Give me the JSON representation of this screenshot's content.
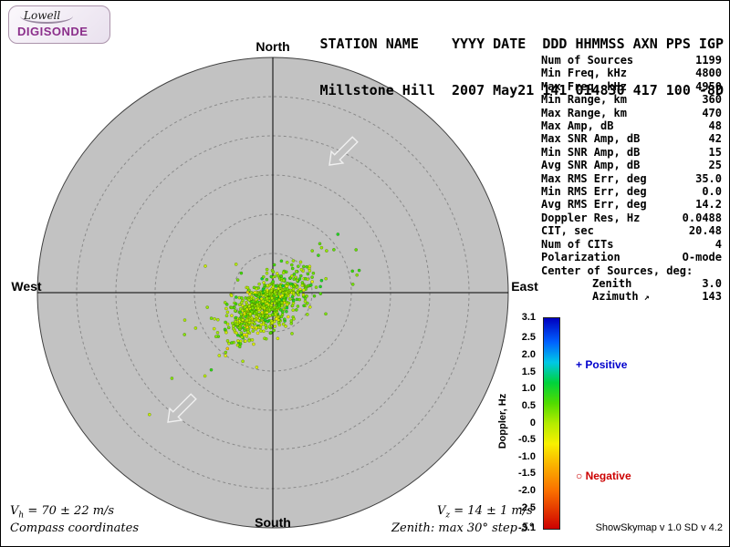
{
  "header": {
    "columns_line": "STATION NAME    YYYY DATE  DDD HHMMSS AXN PPS IGP",
    "values_line": "Millstone Hill  2007 May21 141 014830 417 100 -8D"
  },
  "logo": {
    "line1": "Lowell",
    "line2": "DIGISONDE"
  },
  "compass": {
    "north": "North",
    "south": "South",
    "west": "West",
    "east": "East"
  },
  "params": {
    "rows": [
      {
        "label": "Num of Sources",
        "value": "1199"
      },
      {
        "label": "Min Freq, kHz",
        "value": "4800"
      },
      {
        "label": "Max Freq, kHz",
        "value": "4950"
      },
      {
        "label": "Min Range, km",
        "value": "360"
      },
      {
        "label": "Max Range, km",
        "value": "470"
      },
      {
        "label": "Max Amp, dB",
        "value": "48"
      },
      {
        "label": "Max SNR Amp, dB",
        "value": "42"
      },
      {
        "label": "Min SNR Amp, dB",
        "value": "15"
      },
      {
        "label": "Avg SNR Amp, dB",
        "value": "25"
      },
      {
        "label": "Max RMS Err, deg",
        "value": "35.0"
      },
      {
        "label": "Min RMS Err, deg",
        "value": "0.0"
      },
      {
        "label": "Avg RMS Err, deg",
        "value": "14.2"
      },
      {
        "label": "Doppler Res, Hz",
        "value": "0.0488"
      },
      {
        "label": "CIT, sec",
        "value": "20.48"
      },
      {
        "label": "Num of CITs",
        "value": "4"
      },
      {
        "label": "Polarization",
        "value": "O-mode"
      }
    ],
    "center_header": "Center of Sources, deg:",
    "center_rows": [
      {
        "label": "Zenith",
        "value": "3.0",
        "icon": ""
      },
      {
        "label": "Azimuth",
        "value": "143",
        "icon": "↗"
      }
    ]
  },
  "legend": {
    "positive": {
      "symbol": "+",
      "label": "Positive",
      "color": "#0000cc"
    },
    "negative": {
      "symbol": "○",
      "label": "Negative",
      "color": "#cc0000"
    }
  },
  "footer": {
    "vh_prefix": "V",
    "vh_sub": "h",
    "vh_rest": " = 70 ± 22 m/s",
    "coordinates": "Compass coordinates",
    "vz_prefix": "V",
    "vz_sub": "z",
    "vz_rest": " = 14 ± 1 m/s",
    "zenith_note": "Zenith: max 30°  step 5°",
    "credit": "ShowSkymap v 1.0  SD v 4.2"
  },
  "chart_data": {
    "type": "scatter",
    "projection": "polar-compass-skymap",
    "zenith_max_deg": 30,
    "zenith_step_deg": 5,
    "num_sources_reported": 1199,
    "points_drawn": 780,
    "cluster": {
      "center_zenith_deg": 1.7,
      "center_azimuth_deg": 205,
      "sigma_major_deg": 3.1,
      "sigma_minor_deg": 1.4,
      "major_axis_azimuth_deg": 53
    },
    "outlier_fraction": 0.07,
    "outlier_sigma_deg": 6.5,
    "doppler_mean_hz": 0.2,
    "doppler_sigma_hz": 0.4,
    "reported_center": {
      "zenith_deg": 3.0,
      "azimuth_deg": 143
    },
    "colorbar": {
      "label": "Doppler, Hz",
      "min": -3.1,
      "max": 3.1,
      "ticks": [
        {
          "value": 3.1,
          "label": "3.1"
        },
        {
          "value": 2.5,
          "label": "2.5"
        },
        {
          "value": 2.0,
          "label": "2.0"
        },
        {
          "value": 1.5,
          "label": "1.5"
        },
        {
          "value": 1.0,
          "label": "1.0"
        },
        {
          "value": 0.5,
          "label": "0.5"
        },
        {
          "value": 0.0,
          "label": "0"
        },
        {
          "value": -0.5,
          "label": "-0.5"
        },
        {
          "value": -1.0,
          "label": "-1.0"
        },
        {
          "value": -1.5,
          "label": "-1.5"
        },
        {
          "value": -2.0,
          "label": "-2.0"
        },
        {
          "value": -2.5,
          "label": "-2.5"
        },
        {
          "value": -3.1,
          "label": "-3.1"
        }
      ],
      "stops": [
        {
          "v": 3.1,
          "rgb": [
            0,
            0,
            192
          ]
        },
        {
          "v": 2.4,
          "rgb": [
            0,
            96,
            255
          ]
        },
        {
          "v": 1.8,
          "rgb": [
            0,
            200,
            230
          ]
        },
        {
          "v": 1.2,
          "rgb": [
            0,
            210,
            60
          ]
        },
        {
          "v": 0.6,
          "rgb": [
            80,
            220,
            0
          ]
        },
        {
          "v": 0.0,
          "rgb": [
            180,
            235,
            0
          ]
        },
        {
          "v": -0.6,
          "rgb": [
            248,
            240,
            0
          ]
        },
        {
          "v": -1.2,
          "rgb": [
            250,
            180,
            0
          ]
        },
        {
          "v": -2.0,
          "rgb": [
            250,
            110,
            0
          ]
        },
        {
          "v": -3.1,
          "rgb": [
            205,
            0,
            0
          ]
        }
      ]
    }
  }
}
